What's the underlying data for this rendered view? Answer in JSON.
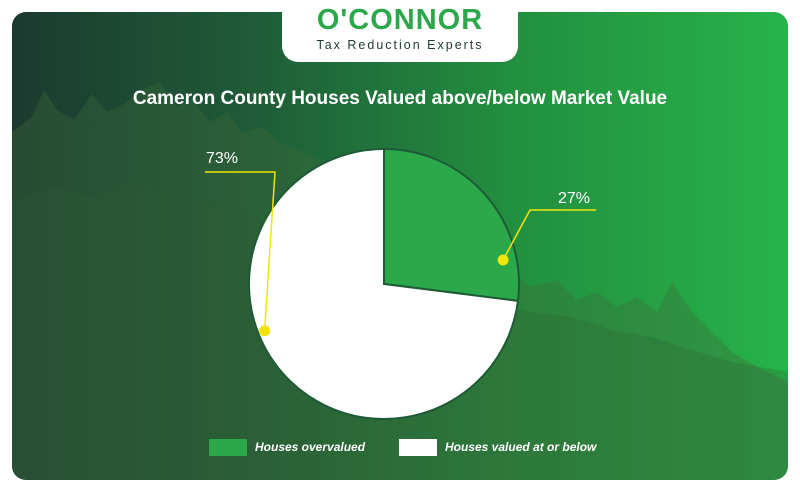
{
  "brand": {
    "name": "O'CONNOR",
    "tagline": "Tax Reduction Experts"
  },
  "colors": {
    "overvalued": "#2aa84a",
    "at_or_below": "#ffffff",
    "callout": "#f1e40a"
  },
  "chart_data": {
    "type": "pie",
    "title": "Cameron County Houses Valued above/below Market Value",
    "slices": [
      {
        "label": "Houses overvalued",
        "value": 27,
        "display": "27%"
      },
      {
        "label": "Houses valued at or below",
        "value": 73,
        "display": "73%"
      }
    ],
    "legend_position": "bottom"
  }
}
